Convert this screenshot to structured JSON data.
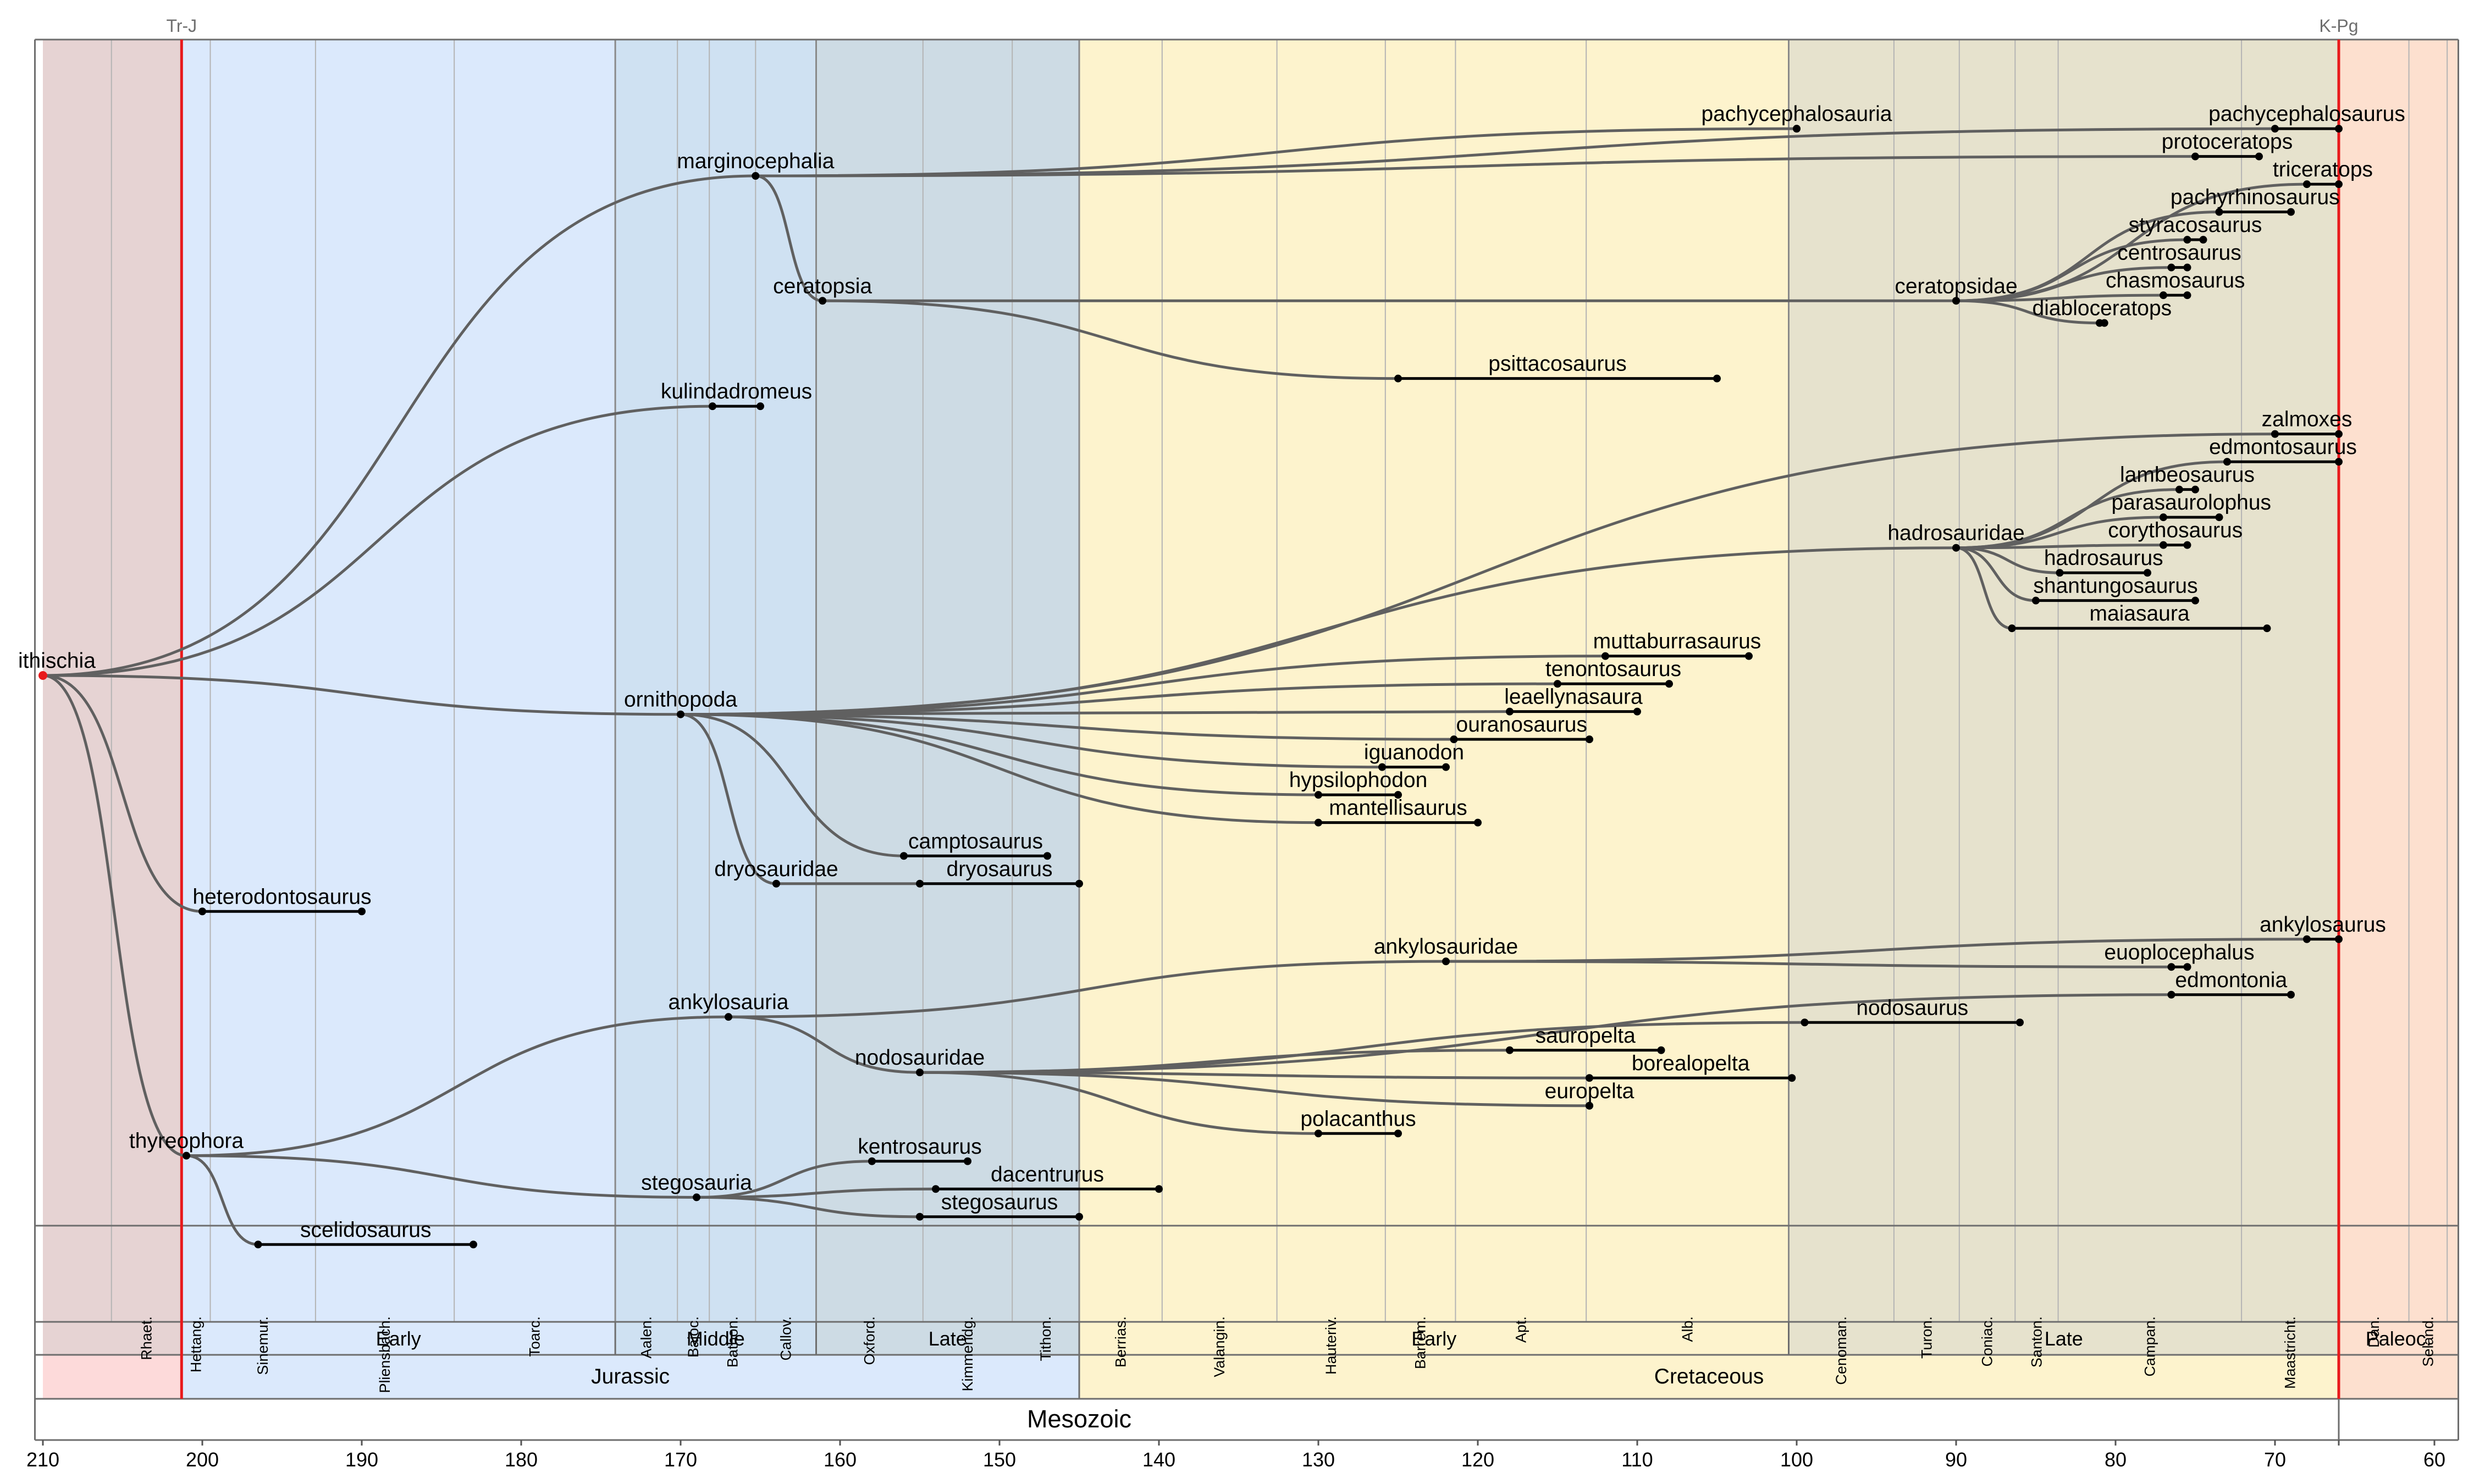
{
  "boundaries": [
    {
      "label": "Tr-J",
      "age": 201.3
    },
    {
      "label": "K-Pg",
      "age": 66.0
    }
  ],
  "era_label": "Mesozoic",
  "periods": [
    {
      "label": "",
      "start": 210,
      "end": 201.3,
      "color": "#fddada"
    },
    {
      "label": "Jurassic",
      "start": 201.3,
      "end": 145,
      "color": "#dbe9fc"
    },
    {
      "label": "Cretaceous",
      "start": 145,
      "end": 66,
      "color": "#fdf3cd"
    },
    {
      "label": "",
      "start": 66,
      "end": 58.5,
      "color": "#fde0cf"
    }
  ],
  "epochs": [
    {
      "label": "",
      "start": 210,
      "end": 201.3,
      "color": "#e6d3d3"
    },
    {
      "label": "Early",
      "start": 201.3,
      "end": 174.1,
      "color": "#dbe9fc"
    },
    {
      "label": "Middle",
      "start": 174.1,
      "end": 161.5,
      "color": "#cfe1f2"
    },
    {
      "label": "Late",
      "start": 161.5,
      "end": 145,
      "color": "#cddbe4"
    },
    {
      "label": "Early",
      "start": 145,
      "end": 100.5,
      "color": "#fdf3cd"
    },
    {
      "label": "Late",
      "start": 100.5,
      "end": 66,
      "color": "#e6e2cd"
    },
    {
      "label": "Paleoc.",
      "start": 66,
      "end": 58.5,
      "color": "#fde0cf"
    }
  ],
  "stages": [
    {
      "label": "Rhaet.",
      "start": 205.7,
      "end": 201.3
    },
    {
      "label": "Hettang.",
      "start": 201.3,
      "end": 199.5
    },
    {
      "label": "Sinemur.",
      "start": 199.5,
      "end": 192.9
    },
    {
      "label": "Pliensbach.",
      "start": 192.9,
      "end": 184.2
    },
    {
      "label": "Toarc.",
      "start": 184.2,
      "end": 174.1
    },
    {
      "label": "Aalen.",
      "start": 174.1,
      "end": 170.2
    },
    {
      "label": "Bajoc.",
      "start": 170.2,
      "end": 168.2
    },
    {
      "label": "Bathon.",
      "start": 168.2,
      "end": 165.3
    },
    {
      "label": "Callov.",
      "start": 165.3,
      "end": 161.5
    },
    {
      "label": "Oxford.",
      "start": 161.5,
      "end": 154.8
    },
    {
      "label": "Kimmeridg.",
      "start": 154.8,
      "end": 149.2
    },
    {
      "label": "Tithon.",
      "start": 149.2,
      "end": 145
    },
    {
      "label": "Berrias.",
      "start": 145,
      "end": 139.8
    },
    {
      "label": "Valangin.",
      "start": 139.8,
      "end": 132.6
    },
    {
      "label": "Hauteriv.",
      "start": 132.6,
      "end": 125.8
    },
    {
      "label": "Barrem.",
      "start": 125.8,
      "end": 121.4
    },
    {
      "label": "Apt.",
      "start": 121.4,
      "end": 113.2
    },
    {
      "label": "Alb.",
      "start": 113.2,
      "end": 100.5
    },
    {
      "label": "Cenoman.",
      "start": 100.5,
      "end": 93.9
    },
    {
      "label": "Turon.",
      "start": 93.9,
      "end": 89.8
    },
    {
      "label": "Coniac.",
      "start": 89.8,
      "end": 86.3
    },
    {
      "label": "Santon.",
      "start": 86.3,
      "end": 83.6
    },
    {
      "label": "Campan.",
      "start": 83.6,
      "end": 72.1
    },
    {
      "label": "Maastricht.",
      "start": 72.1,
      "end": 66
    },
    {
      "label": "Dan.",
      "start": 66,
      "end": 61.6
    },
    {
      "label": "Seland.",
      "start": 61.6,
      "end": 59.2
    }
  ],
  "axis": {
    "ticks": [
      "210",
      "200",
      "190",
      "180",
      "170",
      "160",
      "150",
      "140",
      "130",
      "120",
      "110",
      "100",
      "90",
      "80",
      "70",
      "60"
    ],
    "xlim": [
      210.5,
      58.5
    ]
  },
  "root": {
    "name": "ornithischia",
    "displayed": "ithischia",
    "age": 210,
    "row": 11
  },
  "clades": [
    {
      "name": "marginocephalia",
      "age": 165.3,
      "row": 2,
      "parent": "root"
    },
    {
      "name": "ceratopsia",
      "age": 161.1,
      "row": 4.25,
      "parent": "marginocephalia"
    },
    {
      "name": "ceratopsidae",
      "age": 90,
      "row": 4.25,
      "parent": "ceratopsia"
    },
    {
      "name": "ornithopoda",
      "age": 170,
      "row": 11.7,
      "parent": "root"
    },
    {
      "name": "dryosauridae",
      "age": 164,
      "row": 14.75,
      "parent": "ornithopoda"
    },
    {
      "name": "hadrosauridae",
      "age": 90,
      "row": 8.7,
      "parent": "ornithopoda"
    },
    {
      "name": "thyreophora",
      "age": 201,
      "row": 19.65,
      "parent": "root"
    },
    {
      "name": "ankylosauria",
      "age": 167,
      "row": 17.15,
      "parent": "thyreophora"
    },
    {
      "name": "ankylosauridae",
      "age": 122,
      "row": 16.15,
      "parent": "ankylosauria"
    },
    {
      "name": "nodosauridae",
      "age": 155,
      "row": 18.15,
      "parent": "ankylosauria"
    },
    {
      "name": "stegosauria",
      "age": 169,
      "row": 20.4,
      "parent": "thyreophora"
    }
  ],
  "taxa": [
    {
      "name": "pachycephalosauria",
      "first": 100,
      "last": 100,
      "row": 1.15,
      "parent": "marginocephalia",
      "label_side": "left"
    },
    {
      "name": "pachycephalosaurus",
      "first": 70,
      "last": 66,
      "row": 1.15,
      "parent": "marginocephalia",
      "label_side": "left"
    },
    {
      "name": "protoceratops",
      "first": 75,
      "last": 71,
      "row": 1.65,
      "parent": "marginocephalia",
      "label_side": "left"
    },
    {
      "name": "triceratops",
      "first": 68,
      "last": 66,
      "row": 2.15,
      "parent": "ceratopsidae",
      "label_side": "left"
    },
    {
      "name": "pachyrhinosaurus",
      "first": 73.5,
      "last": 69,
      "row": 2.65,
      "parent": "ceratopsidae",
      "label_side": "left"
    },
    {
      "name": "styracosaurus",
      "first": 75.5,
      "last": 74.5,
      "row": 3.15,
      "parent": "ceratopsidae",
      "label_side": "left"
    },
    {
      "name": "centrosaurus",
      "first": 76.5,
      "last": 75.5,
      "row": 3.65,
      "parent": "ceratopsidae",
      "label_side": "left"
    },
    {
      "name": "chasmosaurus",
      "first": 77,
      "last": 75.5,
      "row": 4.15,
      "parent": "ceratopsidae",
      "label_side": "left"
    },
    {
      "name": "diabloceratops",
      "first": 81,
      "last": 80.7,
      "row": 4.65,
      "parent": "ceratopsidae",
      "label_side": "left"
    },
    {
      "name": "psittacosaurus",
      "first": 125,
      "last": 105,
      "row": 5.65,
      "parent": "ceratopsia",
      "label_side": "right"
    },
    {
      "name": "kulindadromeus",
      "first": 168,
      "last": 165,
      "row": 6.15,
      "parent": "root",
      "label_side": "left"
    },
    {
      "name": "zalmoxes",
      "first": 70,
      "last": 66,
      "row": 6.65,
      "parent": "ornithopoda",
      "label_side": "left"
    },
    {
      "name": "edmontosaurus",
      "first": 73,
      "last": 66,
      "row": 7.15,
      "parent": "hadrosauridae",
      "label_side": "left"
    },
    {
      "name": "lambeosaurus",
      "first": 76,
      "last": 75,
      "row": 7.65,
      "parent": "hadrosauridae",
      "label_side": "left"
    },
    {
      "name": "parasaurolophus",
      "first": 77,
      "last": 73.5,
      "row": 8.15,
      "parent": "hadrosauridae",
      "label_side": "left"
    },
    {
      "name": "corythosaurus",
      "first": 77,
      "last": 75.5,
      "row": 8.65,
      "parent": "hadrosauridae",
      "label_side": "left"
    },
    {
      "name": "hadrosaurus",
      "first": 83.5,
      "last": 78,
      "row": 9.15,
      "parent": "hadrosauridae",
      "label_side": "left"
    },
    {
      "name": "shantungosaurus",
      "first": 85,
      "last": 75,
      "row": 9.65,
      "parent": "hadrosauridae",
      "label_side": "left"
    },
    {
      "name": "maiasaura",
      "first": 86.5,
      "last": 70.5,
      "row": 10.15,
      "parent": "hadrosauridae",
      "label_side": "left"
    },
    {
      "name": "muttaburrasaurus",
      "first": 112,
      "last": 103,
      "row": 10.65,
      "parent": "ornithopoda",
      "label_side": "left"
    },
    {
      "name": "tenontosaurus",
      "first": 115,
      "last": 108,
      "row": 11.15,
      "parent": "ornithopoda",
      "label_side": "left"
    },
    {
      "name": "leaellynasaura",
      "first": 118,
      "last": 110,
      "row": 11.65,
      "parent": "ornithopoda",
      "label_side": "left"
    },
    {
      "name": "ouranosaurus",
      "first": 121.5,
      "last": 113,
      "row": 12.15,
      "parent": "ornithopoda",
      "label_side": "left"
    },
    {
      "name": "iguanodon",
      "first": 126,
      "last": 122,
      "row": 12.65,
      "parent": "ornithopoda",
      "label_side": "left"
    },
    {
      "name": "hypsilophodon",
      "first": 130,
      "last": 125,
      "row": 13.15,
      "parent": "ornithopoda",
      "label_side": "left"
    },
    {
      "name": "mantellisaurus",
      "first": 130,
      "last": 120,
      "row": 13.65,
      "parent": "ornithopoda",
      "label_side": "left"
    },
    {
      "name": "camptosaurus",
      "first": 156,
      "last": 147,
      "row": 14.25,
      "parent": "ornithopoda",
      "label_side": "left"
    },
    {
      "name": "dryosaurus",
      "first": 155,
      "last": 145,
      "row": 14.75,
      "parent": "dryosauridae",
      "label_side": "left"
    },
    {
      "name": "heterodontosaurus",
      "first": 200,
      "last": 190,
      "row": 15.25,
      "parent": "root",
      "label_side": "left"
    },
    {
      "name": "ankylosaurus",
      "first": 68,
      "last": 66,
      "row": 15.75,
      "parent": "ankylosauridae",
      "label_side": "left"
    },
    {
      "name": "euoplocephalus",
      "first": 76.5,
      "last": 75.5,
      "row": 16.25,
      "parent": "ankylosauridae",
      "label_side": "left"
    },
    {
      "name": "edmontonia",
      "first": 76.5,
      "last": 69,
      "row": 16.75,
      "parent": "nodosauridae",
      "label_side": "left"
    },
    {
      "name": "nodosaurus",
      "first": 99.5,
      "last": 86,
      "row": 17.25,
      "parent": "nodosauridae",
      "label_side": "right"
    },
    {
      "name": "sauropelta",
      "first": 118,
      "last": 108.5,
      "row": 17.75,
      "parent": "nodosauridae",
      "label_side": "right"
    },
    {
      "name": "borealopelta",
      "first": 113,
      "last": 100.3,
      "row": 18.25,
      "parent": "nodosauridae",
      "label_side": "right"
    },
    {
      "name": "europelta",
      "first": 113,
      "last": 113,
      "row": 18.75,
      "parent": "nodosauridae",
      "label_side": "left"
    },
    {
      "name": "polacanthus",
      "first": 130,
      "last": 125,
      "row": 19.25,
      "parent": "nodosauridae",
      "label_side": "left"
    },
    {
      "name": "kentrosaurus",
      "first": 158,
      "last": 152,
      "row": 19.75,
      "parent": "stegosauria",
      "label_side": "left"
    },
    {
      "name": "dacentrurus",
      "first": 154,
      "last": 140,
      "row": 20.25,
      "parent": "stegosauria",
      "label_side": "right"
    },
    {
      "name": "stegosaurus",
      "first": 155,
      "last": 145,
      "row": 20.75,
      "parent": "stegosauria",
      "label_side": "left"
    },
    {
      "name": "scelidosaurus",
      "first": 196.5,
      "last": 183,
      "row": 21.25,
      "parent": "thyreophora",
      "label_side": "left"
    }
  ]
}
